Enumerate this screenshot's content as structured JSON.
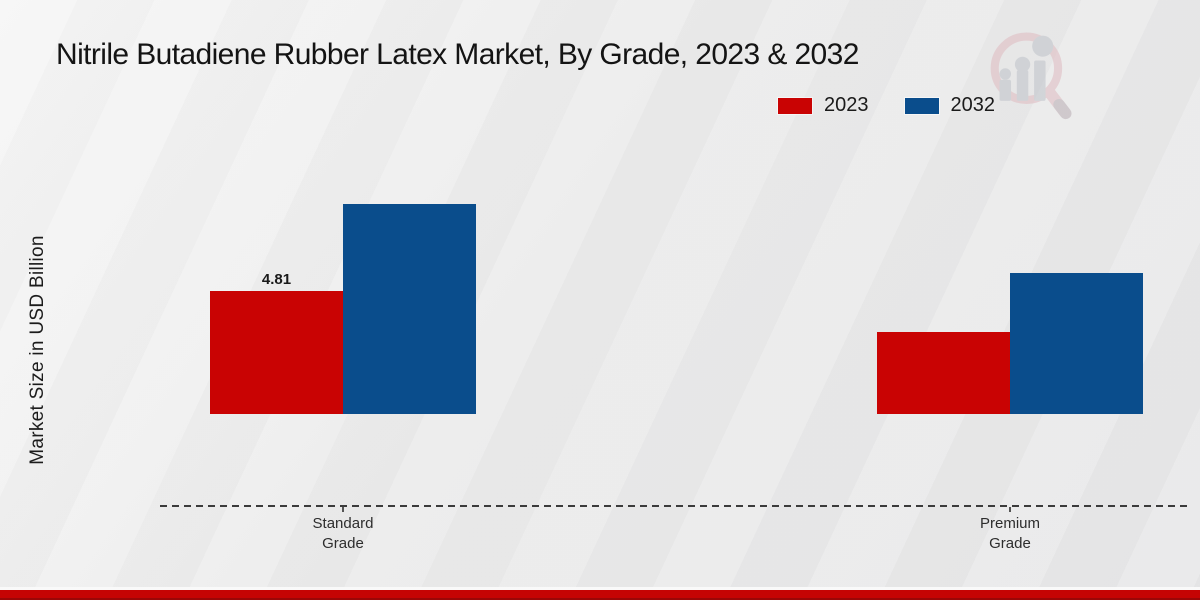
{
  "title": "Nitrile Butadiene Rubber Latex Market, By Grade, 2023 & 2032",
  "watermark_icon": "magnifier-growth-chart-logo",
  "footer_accent_color": "#c50404",
  "chart_data": {
    "type": "bar",
    "title": "Nitrile Butadiene Rubber Latex Market, By Grade, 2023 & 2032",
    "categories": [
      "Standard Grade",
      "Premium Grade"
    ],
    "series": [
      {
        "name": "2023",
        "color": "#c90303",
        "values": [
          4.81,
          3.2
        ]
      },
      {
        "name": "2032",
        "color": "#0a4d8c",
        "values": [
          8.2,
          5.5
        ]
      }
    ],
    "shown_data_labels": [
      {
        "series": "2023",
        "category": "Standard Grade",
        "value": "4.81"
      }
    ],
    "xlabel": "",
    "ylabel": "Market Size in USD Billion",
    "ylim": [
      0,
      9.8
    ],
    "grid": "off",
    "baseline_style": "dashed",
    "legend_position": "top-right"
  }
}
